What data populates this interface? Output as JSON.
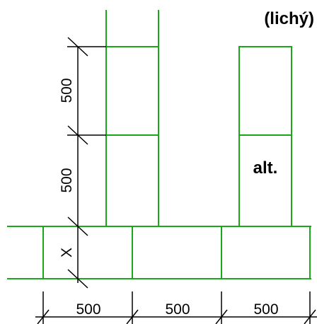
{
  "labels": {
    "title": "(lichý)",
    "alt": "alt."
  },
  "dimensions": {
    "vertical_upper": "500",
    "vertical_lower": "500",
    "vertical_base": "X",
    "horizontal_1": "500",
    "horizontal_2": "500",
    "horizontal_3": "500"
  },
  "colors": {
    "block_outline": "#1aa81a",
    "dimension_lines": "#000000"
  }
}
